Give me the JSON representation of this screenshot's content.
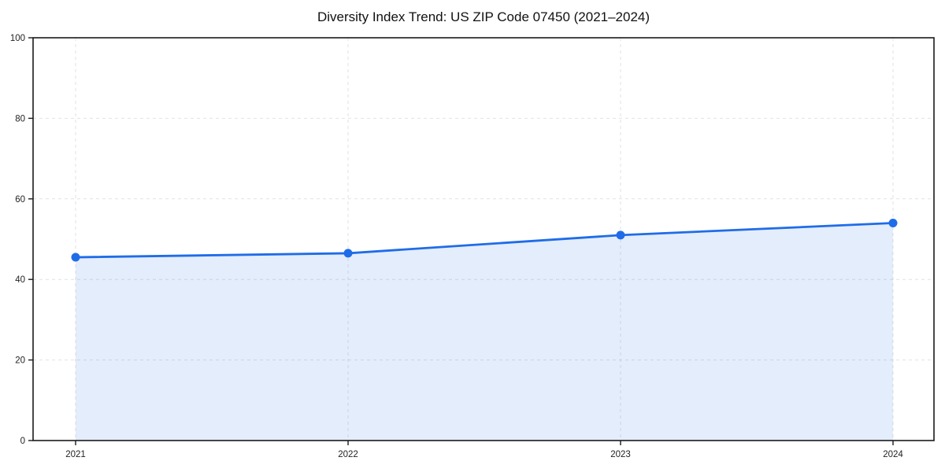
{
  "chart": {
    "title": "Diversity Index Trend: US ZIP Code 07450 (2021–2024)"
  },
  "chart_data": {
    "type": "area",
    "title": "Diversity Index Trend: US ZIP Code 07450 (2021–2024)",
    "categories": [
      "2021",
      "2022",
      "2023",
      "2024"
    ],
    "series": [
      {
        "name": "Diversity Index",
        "values": [
          45.5,
          46.5,
          51,
          54
        ]
      }
    ],
    "xlabel": "",
    "ylabel": "",
    "ylim": [
      0,
      100
    ],
    "yticks": [
      0,
      20,
      40,
      60,
      80,
      100
    ],
    "grid": true,
    "grid_style": "dashed",
    "legend": "none",
    "line_color": "#1f6ce8",
    "fill_color": "#1f6ce8",
    "fill_opacity": 0.12,
    "marker": "circle",
    "frame_color": "#1a1a1a",
    "grid_color": "#e2e2e2"
  }
}
